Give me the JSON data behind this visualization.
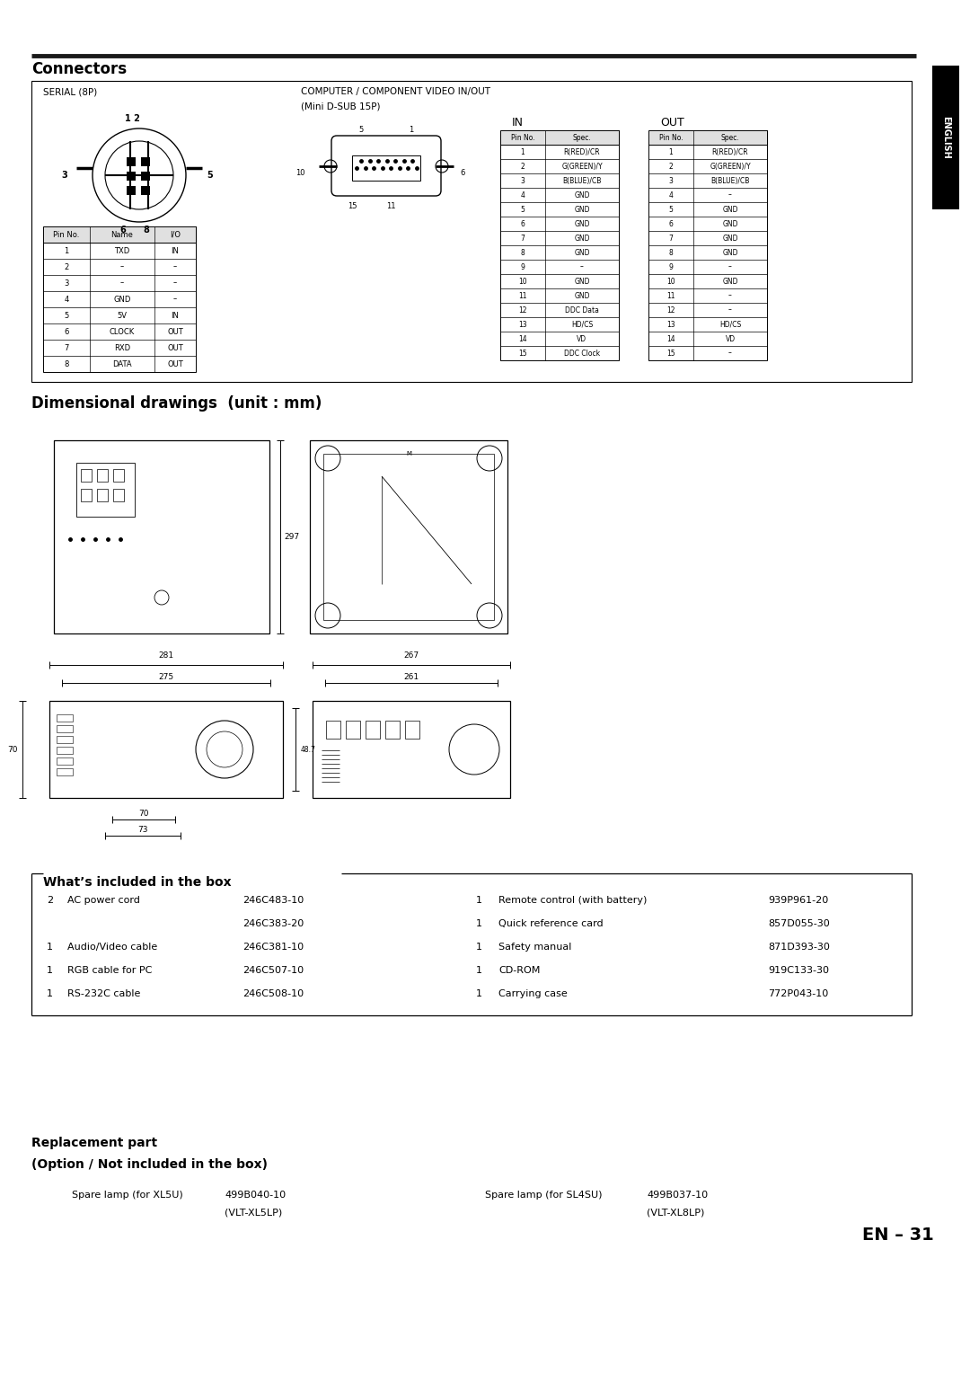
{
  "page_bg": "#ffffff",
  "page_width": 10.8,
  "page_height": 15.28,
  "section_connectors": {
    "title": "Connectors",
    "serial_label": "SERIAL (8P)",
    "computer_label": "COMPUTER / COMPONENT VIDEO IN/OUT",
    "computer_label2": "(Mini D-SUB 15P)",
    "in_label": "IN",
    "out_label": "OUT",
    "serial_table_headers": [
      "Pin No.",
      "Name",
      "I/O"
    ],
    "serial_table_rows": [
      [
        "1",
        "TXD",
        "IN"
      ],
      [
        "2",
        "–",
        "–"
      ],
      [
        "3",
        "–",
        "–"
      ],
      [
        "4",
        "GND",
        "–"
      ],
      [
        "5",
        "5V",
        "IN"
      ],
      [
        "6",
        "CLOCK",
        "OUT"
      ],
      [
        "7",
        "RXD",
        "OUT"
      ],
      [
        "8",
        "DATA",
        "OUT"
      ]
    ],
    "in_table_headers": [
      "Pin No.",
      "Spec."
    ],
    "in_table_rows": [
      [
        "1",
        "R(RED)/CR"
      ],
      [
        "2",
        "G(GREEN)/Y"
      ],
      [
        "3",
        "B(BLUE)/CB"
      ],
      [
        "4",
        "GND"
      ],
      [
        "5",
        "GND"
      ],
      [
        "6",
        "GND"
      ],
      [
        "7",
        "GND"
      ],
      [
        "8",
        "GND"
      ],
      [
        "9",
        "–"
      ],
      [
        "10",
        "GND"
      ],
      [
        "11",
        "GND"
      ],
      [
        "12",
        "DDC Data"
      ],
      [
        "13",
        "HD/CS"
      ],
      [
        "14",
        "VD"
      ],
      [
        "15",
        "DDC Clock"
      ]
    ],
    "out_table_headers": [
      "Pin No.",
      "Spec."
    ],
    "out_table_rows": [
      [
        "1",
        "R(RED)/CR"
      ],
      [
        "2",
        "G(GREEN)/Y"
      ],
      [
        "3",
        "B(BLUE)/CB"
      ],
      [
        "4",
        "–"
      ],
      [
        "5",
        "GND"
      ],
      [
        "6",
        "GND"
      ],
      [
        "7",
        "GND"
      ],
      [
        "8",
        "GND"
      ],
      [
        "9",
        "–"
      ],
      [
        "10",
        "GND"
      ],
      [
        "11",
        "–"
      ],
      [
        "12",
        "–"
      ],
      [
        "13",
        "HD/CS"
      ],
      [
        "14",
        "VD"
      ],
      [
        "15",
        "–"
      ]
    ]
  },
  "section_dimensional": {
    "title": "Dimensional drawings  (unit : mm)",
    "dims": {
      "top_left_height": "297",
      "bottom_left_width1": "281",
      "bottom_left_width2": "275",
      "bottom_left_height": "70",
      "bottom_left_sub_height": "48.7",
      "bottom_left_foot1": "70",
      "bottom_left_foot2": "73",
      "bottom_right_width1": "267",
      "bottom_right_width2": "261"
    }
  },
  "section_inbox": {
    "title": "What’s included in the box",
    "left_items": [
      {
        "qty": "2",
        "name": "AC power cord",
        "code": "246C483-10"
      },
      {
        "qty": "",
        "name": "",
        "code": "246C383-20"
      },
      {
        "qty": "1",
        "name": "Audio/Video cable",
        "code": "246C381-10"
      },
      {
        "qty": "1",
        "name": "RGB cable for PC",
        "code": "246C507-10"
      },
      {
        "qty": "1",
        "name": "RS-232C cable",
        "code": "246C508-10"
      }
    ],
    "right_items": [
      {
        "qty": "1",
        "name": "Remote control (with battery)",
        "code": "939P961-20"
      },
      {
        "qty": "1",
        "name": "Quick reference card",
        "code": "857D055-30"
      },
      {
        "qty": "1",
        "name": "Safety manual",
        "code": "871D393-30"
      },
      {
        "qty": "1",
        "name": "CD-ROM",
        "code": "919C133-30"
      },
      {
        "qty": "1",
        "name": "Carrying case",
        "code": "772P043-10"
      }
    ]
  },
  "section_replacement": {
    "title1": "Replacement part",
    "title2": "(Option / Not included in the box)",
    "items": [
      {
        "name": "Spare lamp (for XL5U)",
        "code1": "499B040-10",
        "code2": "(VLT-XL5LP)"
      },
      {
        "name": "Spare lamp (for SL4SU)",
        "code1": "499B037-10",
        "code2": "(VLT-XL8LP)"
      }
    ],
    "page_num": "EN – 31"
  }
}
